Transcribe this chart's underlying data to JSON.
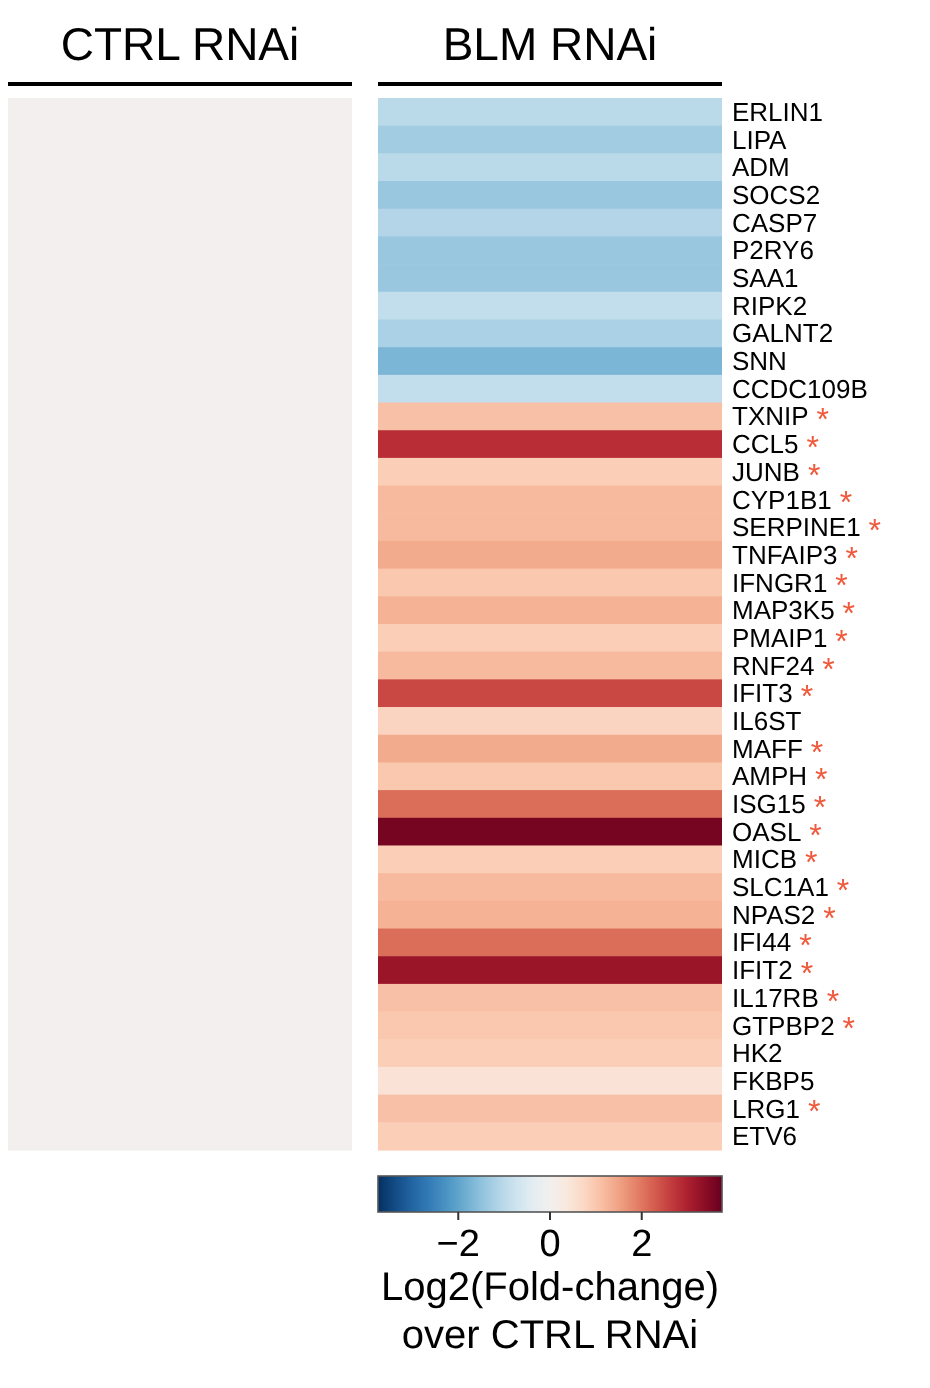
{
  "chart_data": {
    "type": "heatmap",
    "categories": [
      "CTRL RNAi",
      "BLM RNAi"
    ],
    "y_categories": [
      "ERLIN1",
      "LIPA",
      "ADM",
      "SOCS2",
      "CASP7",
      "P2RY6",
      "SAA1",
      "RIPK2",
      "GALNT2",
      "SNN",
      "CCDC109B",
      "TXNIP",
      "CCL5",
      "JUNB",
      "CYP1B1",
      "SERPINE1",
      "TNFAIP3",
      "IFNGR1",
      "MAP3K5",
      "PMAIP1",
      "RNF24",
      "IFIT3",
      "IL6ST",
      "MAFF",
      "AMPH",
      "ISG15",
      "OASL",
      "MICB",
      "SLC1A1",
      "NPAS2",
      "IFI44",
      "IFIT2",
      "IL17RB",
      "GTPBP2",
      "HK2",
      "FKBP5",
      "LRG1",
      "ETV6"
    ],
    "cells": [
      [
        0,
        -1.0
      ],
      [
        0,
        -1.3
      ],
      [
        0,
        -1.0
      ],
      [
        0,
        -1.4
      ],
      [
        0,
        -1.1
      ],
      [
        0,
        -1.4
      ],
      [
        0,
        -1.4
      ],
      [
        0,
        -0.9
      ],
      [
        0,
        -1.2
      ],
      [
        0,
        -1.7
      ],
      [
        0,
        -0.9
      ],
      [
        0,
        1.1
      ],
      [
        0,
        2.8
      ],
      [
        0,
        0.9
      ],
      [
        0,
        1.2
      ],
      [
        0,
        1.2
      ],
      [
        0,
        1.4
      ],
      [
        0,
        1.0
      ],
      [
        0,
        1.3
      ],
      [
        0,
        0.9
      ],
      [
        0,
        1.2
      ],
      [
        0,
        2.5
      ],
      [
        0,
        0.8
      ],
      [
        0,
        1.4
      ],
      [
        0,
        1.0
      ],
      [
        0,
        2.1
      ],
      [
        0,
        3.6
      ],
      [
        0,
        0.9
      ],
      [
        0,
        1.2
      ],
      [
        0,
        1.3
      ],
      [
        0,
        2.1
      ],
      [
        0,
        3.2
      ],
      [
        0,
        1.1
      ],
      [
        0,
        1.0
      ],
      [
        0,
        0.9
      ],
      [
        0,
        0.5
      ],
      [
        0,
        1.1
      ],
      [
        0,
        0.9
      ]
    ],
    "clim": [
      -3.75,
      3.75
    ],
    "cticks": [
      -2,
      0,
      2
    ],
    "clabel": "Log2(Fold-change) over CTRL RNAi",
    "y2_categories": [
      null,
      null,
      null,
      null,
      null,
      null,
      null,
      null,
      null,
      null,
      null,
      "*",
      "*",
      "*",
      "*",
      "*",
      "*",
      "*",
      "*",
      "*",
      "*",
      "*",
      null,
      "*",
      "*",
      "*",
      "*",
      "*",
      "*",
      "*",
      "*",
      "*",
      "*",
      "*",
      null,
      null,
      "*",
      null
    ]
  }
}
